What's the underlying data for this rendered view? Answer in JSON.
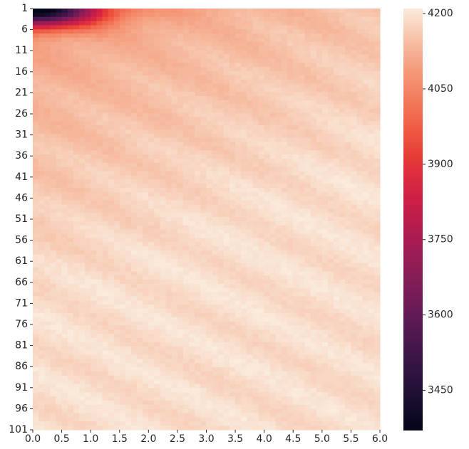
{
  "chart_data": {
    "type": "heatmap",
    "title": "",
    "xlabel": "",
    "ylabel": "",
    "x_tick_labels": [
      "0.0",
      "0.5",
      "1.0",
      "1.5",
      "2.0",
      "2.5",
      "3.0",
      "3.5",
      "4.0",
      "4.5",
      "5.0",
      "5.5",
      "6.0"
    ],
    "x_range": [
      0.0,
      6.0
    ],
    "y_tick_labels": [
      "1",
      "6",
      "11",
      "16",
      "21",
      "26",
      "31",
      "36",
      "41",
      "46",
      "51",
      "56",
      "61",
      "66",
      "71",
      "76",
      "81",
      "86",
      "91",
      "96",
      "101"
    ],
    "y_range": [
      1,
      101
    ],
    "colorbar": {
      "colormap": "rocket",
      "vmin": 3370,
      "vmax": 4210,
      "tick_labels": [
        "4200",
        "4050",
        "3900",
        "3750",
        "3600",
        "3450"
      ],
      "tick_values": [
        4200,
        4050,
        3900,
        3750,
        3600,
        3450
      ]
    },
    "grid": false,
    "value_model": {
      "corner_min": 3380,
      "plateau_low": 4075,
      "plateau_high": 4190,
      "notes": "Values approximated: a dark low-value pocket at x=0, rows 1-6, rising quickly to about 4100-4200 elsewhere, with faint diagonal banding."
    }
  }
}
